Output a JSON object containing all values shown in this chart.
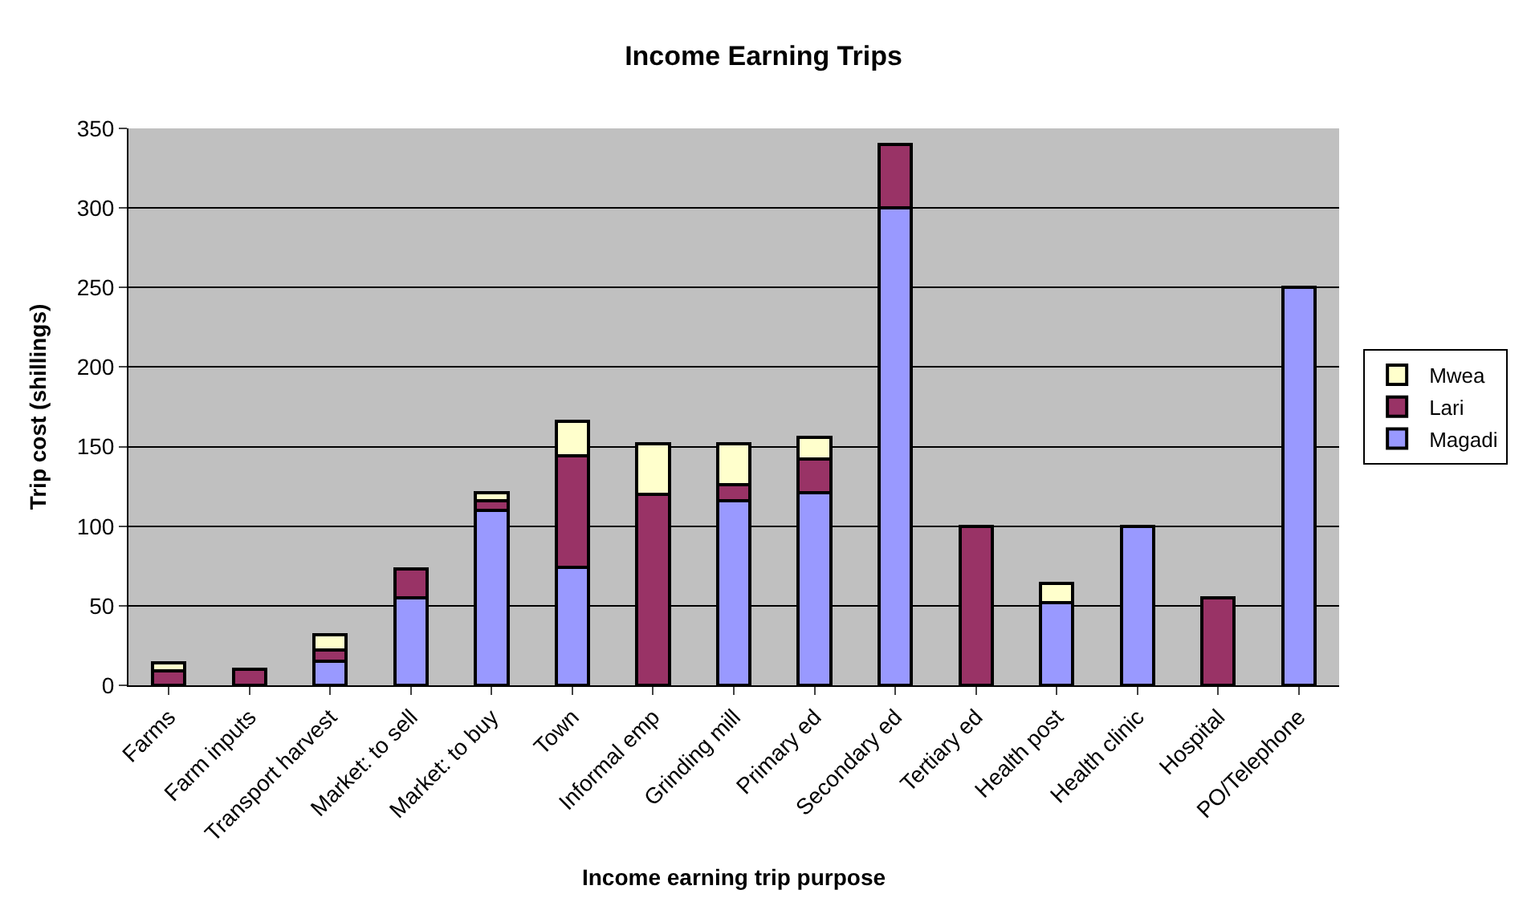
{
  "chart_data": {
    "type": "bar",
    "title": "Income Earning Trips",
    "xlabel": "Income earning trip purpose",
    "ylabel": "Trip cost (shillings)",
    "categories": [
      "Farms",
      "Farm inputs",
      "Transport harvest",
      "Market: to sell",
      "Market: to buy",
      "Town",
      "Informal emp",
      "Grinding mill",
      "Primary ed",
      "Secondary ed",
      "Tertiary ed",
      "Health post",
      "Health clinic",
      "Hospital",
      "PO/Telephone"
    ],
    "stacked": true,
    "series": [
      {
        "name": "Magadi",
        "color": "#9999ff",
        "values": [
          null,
          null,
          15,
          55,
          110,
          74,
          null,
          116,
          121,
          300,
          null,
          52,
          100,
          null,
          250
        ]
      },
      {
        "name": "Lari",
        "color": "#993366",
        "values": [
          9,
          10,
          7,
          18,
          6,
          70,
          120,
          10,
          21,
          40,
          100,
          null,
          null,
          55,
          null
        ]
      },
      {
        "name": "Mwea",
        "color": "#ffffcc",
        "values": [
          5,
          null,
          10,
          null,
          5,
          22,
          32,
          26,
          14,
          null,
          null,
          12,
          null,
          null,
          null
        ]
      }
    ],
    "ylim": [
      0,
      350
    ],
    "yticks": [
      0,
      50,
      100,
      150,
      200,
      250,
      300,
      350
    ],
    "grid": "y",
    "legend": "right"
  }
}
